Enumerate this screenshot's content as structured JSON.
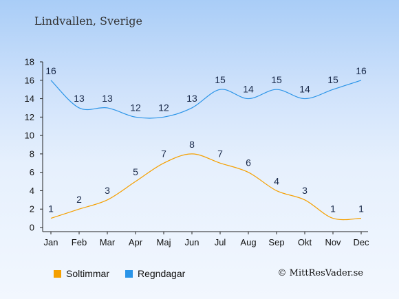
{
  "title": "Lindvallen, Sverige",
  "copyright": "© MittResVader.se",
  "chart_data": {
    "type": "line",
    "categories": [
      "Jan",
      "Feb",
      "Mar",
      "Apr",
      "Maj",
      "Jun",
      "Jul",
      "Aug",
      "Sep",
      "Okt",
      "Nov",
      "Dec"
    ],
    "ylim": [
      0,
      18
    ],
    "yticks": [
      0,
      2,
      4,
      6,
      8,
      10,
      12,
      14,
      16,
      18
    ],
    "grid": false,
    "legend_position": "bottom",
    "series": [
      {
        "name": "Soltimmar",
        "color": "#f5a000",
        "values": [
          1,
          2,
          3,
          5,
          7,
          8,
          7,
          6,
          4,
          3,
          1,
          1
        ]
      },
      {
        "name": "Regndagar",
        "color": "#2a94e8",
        "values": [
          16,
          13,
          13,
          12,
          12,
          13,
          15,
          14,
          15,
          14,
          15,
          16
        ]
      }
    ]
  }
}
